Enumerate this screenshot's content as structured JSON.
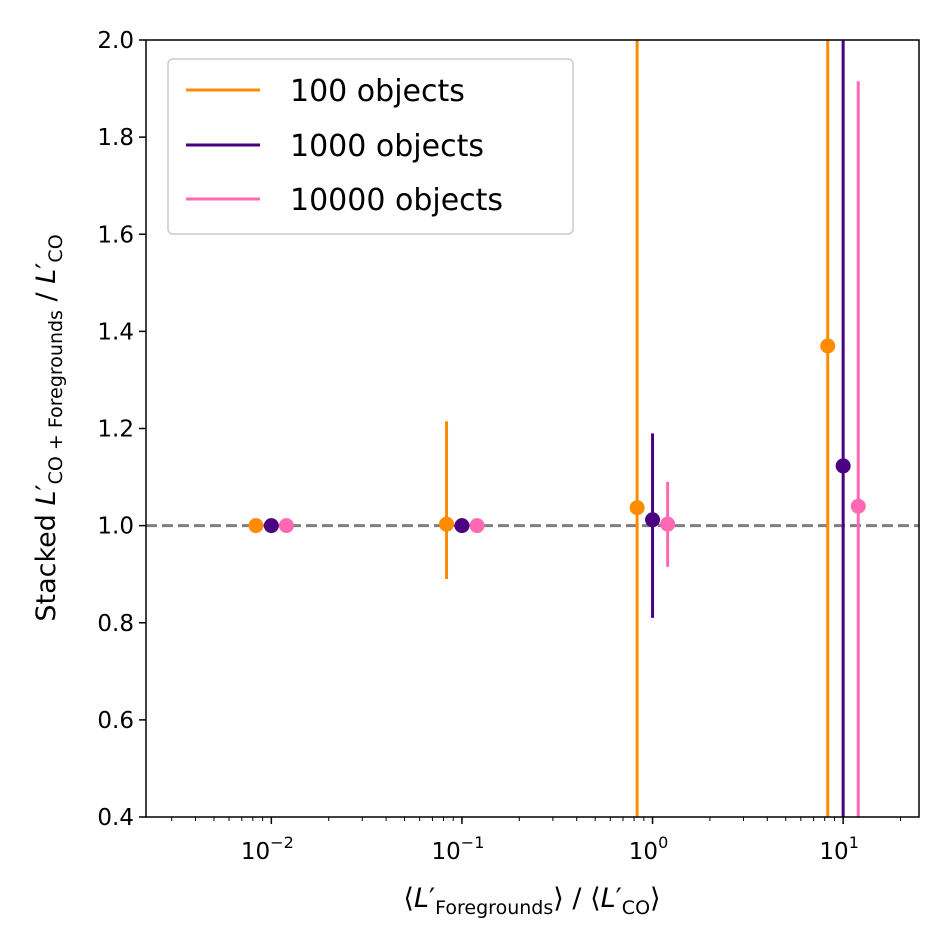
{
  "chart_data": {
    "type": "scatter",
    "xscale": "log",
    "xlim": [
      0.0022,
      25
    ],
    "ylim": [
      0.4,
      2.0
    ],
    "xlabel": {
      "lbr": "⟨",
      "L": "L",
      "prime": "′",
      "sub": "Foregrounds",
      "rbr": "⟩",
      "sep": " / ",
      "lbr2": "⟨",
      "L2": "L",
      "prime2": "′",
      "sub2": "CO",
      "rbr2": "⟩"
    },
    "ylabel": {
      "pre": "Stacked ",
      "L": "L",
      "prime": "′",
      "sub": "CO + Foregrounds",
      "sep": " / ",
      "L2": "L",
      "prime2": "′",
      "sub2": "CO"
    },
    "xticks": [
      {
        "value": 0.01,
        "base": "10",
        "exp": "−2"
      },
      {
        "value": 0.1,
        "base": "10",
        "exp": "−1"
      },
      {
        "value": 1,
        "base": "10",
        "exp": "0"
      },
      {
        "value": 10,
        "base": "10",
        "exp": "1"
      }
    ],
    "yticks": [
      "0.4",
      "0.6",
      "0.8",
      "1.0",
      "1.2",
      "1.4",
      "1.6",
      "1.8",
      "2.0"
    ],
    "reference_line": {
      "y": 1.0,
      "style": "dashed",
      "color": "#808080"
    },
    "grid": false,
    "legend_position": "top-left",
    "series": [
      {
        "name": "100 objects",
        "color": "#ff8c00",
        "points": [
          {
            "x": 0.0083,
            "y": 1.0,
            "yerr_low": 0.99,
            "yerr_high": 1.01
          },
          {
            "x": 0.083,
            "y": 1.003,
            "yerr_low": 0.89,
            "yerr_high": 1.215
          },
          {
            "x": 0.83,
            "y": 1.037,
            "yerr_low": 0.4,
            "yerr_high": 2.0
          },
          {
            "x": 8.3,
            "y": 1.37,
            "yerr_low": 0.4,
            "yerr_high": 2.0
          }
        ]
      },
      {
        "name": "1000 objects",
        "color": "#4b0082",
        "points": [
          {
            "x": 0.01,
            "y": 1.0,
            "yerr_low": 0.995,
            "yerr_high": 1.005
          },
          {
            "x": 0.1,
            "y": 1.0,
            "yerr_low": 0.985,
            "yerr_high": 1.015
          },
          {
            "x": 1.0,
            "y": 1.012,
            "yerr_low": 0.81,
            "yerr_high": 1.19
          },
          {
            "x": 10.0,
            "y": 1.123,
            "yerr_low": 0.4,
            "yerr_high": 2.0
          }
        ]
      },
      {
        "name": "10000 objects",
        "color": "#ff69b4",
        "points": [
          {
            "x": 0.012,
            "y": 1.0,
            "yerr_low": 0.997,
            "yerr_high": 1.003
          },
          {
            "x": 0.12,
            "y": 1.0,
            "yerr_low": 0.995,
            "yerr_high": 1.005
          },
          {
            "x": 1.2,
            "y": 1.003,
            "yerr_low": 0.915,
            "yerr_high": 1.09
          },
          {
            "x": 12.0,
            "y": 1.04,
            "yerr_low": 0.4,
            "yerr_high": 1.915
          }
        ]
      }
    ]
  }
}
